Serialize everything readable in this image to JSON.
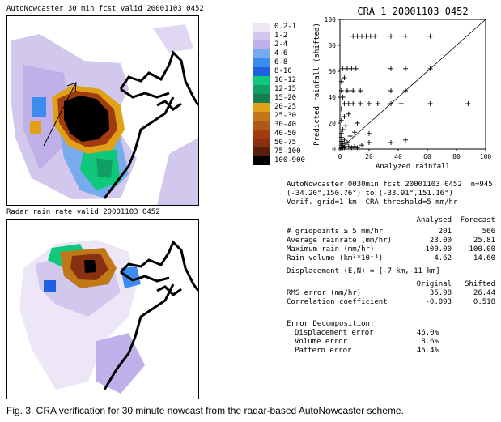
{
  "top_map": {
    "title": "AutoNowcaster 30 min fcst valid 20001103 0452"
  },
  "bottom_map": {
    "title": "Radar rain rate valid 20001103 0452"
  },
  "legend": {
    "items": [
      {
        "label": "0.2-1",
        "color": "#ece6f6"
      },
      {
        "label": "1-2",
        "color": "#d2c8ee"
      },
      {
        "label": "2-4",
        "color": "#c0b0ea"
      },
      {
        "label": "4-6",
        "color": "#78aaee"
      },
      {
        "label": "6-8",
        "color": "#3c8cf0"
      },
      {
        "label": "8-10",
        "color": "#1e60e0"
      },
      {
        "label": "10-12",
        "color": "#10c87c"
      },
      {
        "label": "12-15",
        "color": "#10a064"
      },
      {
        "label": "15-20",
        "color": "#187c50"
      },
      {
        "label": "20-25",
        "color": "#e0a018"
      },
      {
        "label": "25-30",
        "color": "#c07818"
      },
      {
        "label": "30-40",
        "color": "#b05818"
      },
      {
        "label": "40-50",
        "color": "#a03c10"
      },
      {
        "label": "50-75",
        "color": "#883010"
      },
      {
        "label": "75-100",
        "color": "#5a1e0c"
      },
      {
        "label": "100-900",
        "color": "#000000"
      }
    ]
  },
  "chart_data": {
    "type": "scatter",
    "title": "CRA 1 20001103 0452",
    "xlabel": "Analyzed rainfall",
    "ylabel": "Predicted rainfall (shifted)",
    "xlim": [
      0,
      100
    ],
    "ylim": [
      0,
      100
    ],
    "x_ticks": [
      "0",
      "20",
      "40",
      "60",
      "80",
      "100"
    ],
    "y_ticks": [
      "0",
      "20",
      "40",
      "60",
      "80",
      "100"
    ],
    "diagonal": true,
    "points": [
      {
        "x": 1,
        "y": 1
      },
      {
        "x": 2,
        "y": 1
      },
      {
        "x": 3,
        "y": 1
      },
      {
        "x": 4,
        "y": 2
      },
      {
        "x": 1,
        "y": 3
      },
      {
        "x": 2,
        "y": 4
      },
      {
        "x": 6,
        "y": 2
      },
      {
        "x": 8,
        "y": 1
      },
      {
        "x": 10,
        "y": 2
      },
      {
        "x": 12,
        "y": 1
      },
      {
        "x": 1,
        "y": 6
      },
      {
        "x": 3,
        "y": 7
      },
      {
        "x": 1,
        "y": 9
      },
      {
        "x": 5,
        "y": 5
      },
      {
        "x": 15,
        "y": 3
      },
      {
        "x": 20,
        "y": 5
      },
      {
        "x": 1,
        "y": 12
      },
      {
        "x": 2,
        "y": 15
      },
      {
        "x": 4,
        "y": 18
      },
      {
        "x": 7,
        "y": 10
      },
      {
        "x": 10,
        "y": 13
      },
      {
        "x": 1,
        "y": 22
      },
      {
        "x": 3,
        "y": 25
      },
      {
        "x": 6,
        "y": 27
      },
      {
        "x": 12,
        "y": 20
      },
      {
        "x": 1,
        "y": 31
      },
      {
        "x": 3,
        "y": 35
      },
      {
        "x": 6,
        "y": 35
      },
      {
        "x": 9,
        "y": 35
      },
      {
        "x": 14,
        "y": 35
      },
      {
        "x": 20,
        "y": 35
      },
      {
        "x": 26,
        "y": 35
      },
      {
        "x": 35,
        "y": 35
      },
      {
        "x": 42,
        "y": 35
      },
      {
        "x": 62,
        "y": 35
      },
      {
        "x": 88,
        "y": 35
      },
      {
        "x": 2,
        "y": 40
      },
      {
        "x": 1,
        "y": 45
      },
      {
        "x": 5,
        "y": 45
      },
      {
        "x": 9,
        "y": 45
      },
      {
        "x": 14,
        "y": 45
      },
      {
        "x": 35,
        "y": 45
      },
      {
        "x": 45,
        "y": 45
      },
      {
        "x": 1,
        "y": 52
      },
      {
        "x": 3,
        "y": 55
      },
      {
        "x": 2,
        "y": 62
      },
      {
        "x": 5,
        "y": 62
      },
      {
        "x": 8,
        "y": 62
      },
      {
        "x": 11,
        "y": 62
      },
      {
        "x": 35,
        "y": 62
      },
      {
        "x": 45,
        "y": 62
      },
      {
        "x": 62,
        "y": 62
      },
      {
        "x": 9,
        "y": 87
      },
      {
        "x": 12,
        "y": 87
      },
      {
        "x": 15,
        "y": 87
      },
      {
        "x": 18,
        "y": 87
      },
      {
        "x": 21,
        "y": 87
      },
      {
        "x": 24,
        "y": 87
      },
      {
        "x": 35,
        "y": 87
      },
      {
        "x": 45,
        "y": 87
      },
      {
        "x": 62,
        "y": 87
      },
      {
        "x": 20,
        "y": 12
      },
      {
        "x": 45,
        "y": 7
      },
      {
        "x": 35,
        "y": 5
      }
    ]
  },
  "stats": {
    "header_line1": "AutoNowcaster 0030min fcst 20001103 0452  n=945",
    "header_line2": "(-34.20°,150.76°) to (-33.91°,151.16°)",
    "header_line3": "Verif. grid=1 km  CRA threshold=5 mm/hr",
    "col_analysed": "Analysed",
    "col_forecast": "Forecast",
    "rows": [
      {
        "label": "# gridpoints ≥ 5 mm/hr",
        "a": "201",
        "f": "566"
      },
      {
        "label": "Average rainrate (mm/hr)",
        "a": "23.00",
        "f": "25.81"
      },
      {
        "label": "Maximum rain (mm/hr)",
        "a": "100.00",
        "f": "100.00"
      },
      {
        "label": "Rain volume (km²*10⁻³)",
        "a": "4.62",
        "f": "14.60"
      }
    ],
    "displacement": "Displacement (E,N) = [-7 km,-11 km]",
    "col_original": "Original",
    "col_shifted": "Shifted",
    "rows2": [
      {
        "label": "RMS error (mm/hr)",
        "a": "35.98",
        "f": "26.44"
      },
      {
        "label": "Correlation coefficient",
        "a": "-0.093",
        "f": "0.518"
      }
    ],
    "decomp_title": "Error Decomposition:",
    "decomp": [
      {
        "label": "Displacement error",
        "v": "46.0%"
      },
      {
        "label": "Volume error",
        "v": "8.6%"
      },
      {
        "label": "Pattern error",
        "v": "45.4%"
      }
    ]
  },
  "caption": "Fig. 3. CRA verification for 30 minute nowcast from the radar-based AutoNowcaster scheme."
}
